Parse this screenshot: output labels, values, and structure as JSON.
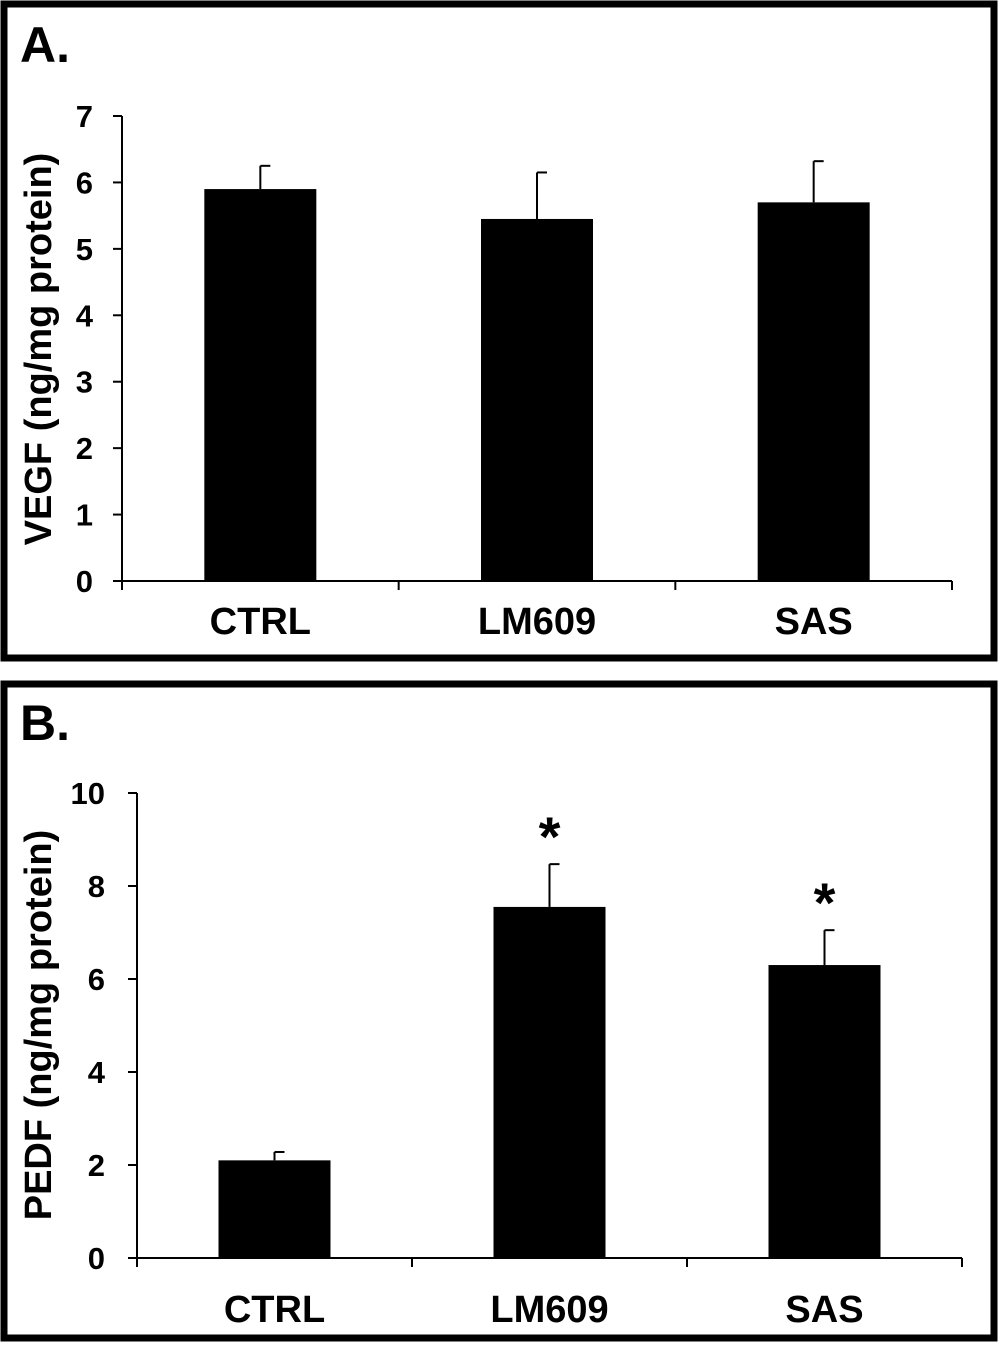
{
  "chart_data": [
    {
      "type": "bar",
      "panel_label": "A.",
      "categories": [
        "CTRL",
        "LM609",
        "SAS"
      ],
      "values": [
        5.9,
        5.45,
        5.7
      ],
      "errors": [
        0.35,
        0.7,
        0.62
      ],
      "annotations": [
        "",
        "",
        ""
      ],
      "ylabel": "VEGF (ng/mg protein)",
      "xlabel": "",
      "ylim": [
        0,
        7
      ],
      "yticks": [
        "0",
        "1",
        "2",
        "3",
        "4",
        "5",
        "6",
        "7"
      ],
      "grid": false,
      "bar_color": "#000000"
    },
    {
      "type": "bar",
      "panel_label": "B.",
      "categories": [
        "CTRL",
        "LM609",
        "SAS"
      ],
      "values": [
        2.1,
        7.55,
        6.3
      ],
      "errors": [
        0.18,
        0.92,
        0.75
      ],
      "annotations": [
        "",
        "*",
        "*"
      ],
      "ylabel": "PEDF (ng/mg protein)",
      "xlabel": "",
      "ylim": [
        0,
        10
      ],
      "yticks": [
        "0",
        "2",
        "4",
        "6",
        "8",
        "10"
      ],
      "grid": false,
      "bar_color": "#000000"
    }
  ]
}
